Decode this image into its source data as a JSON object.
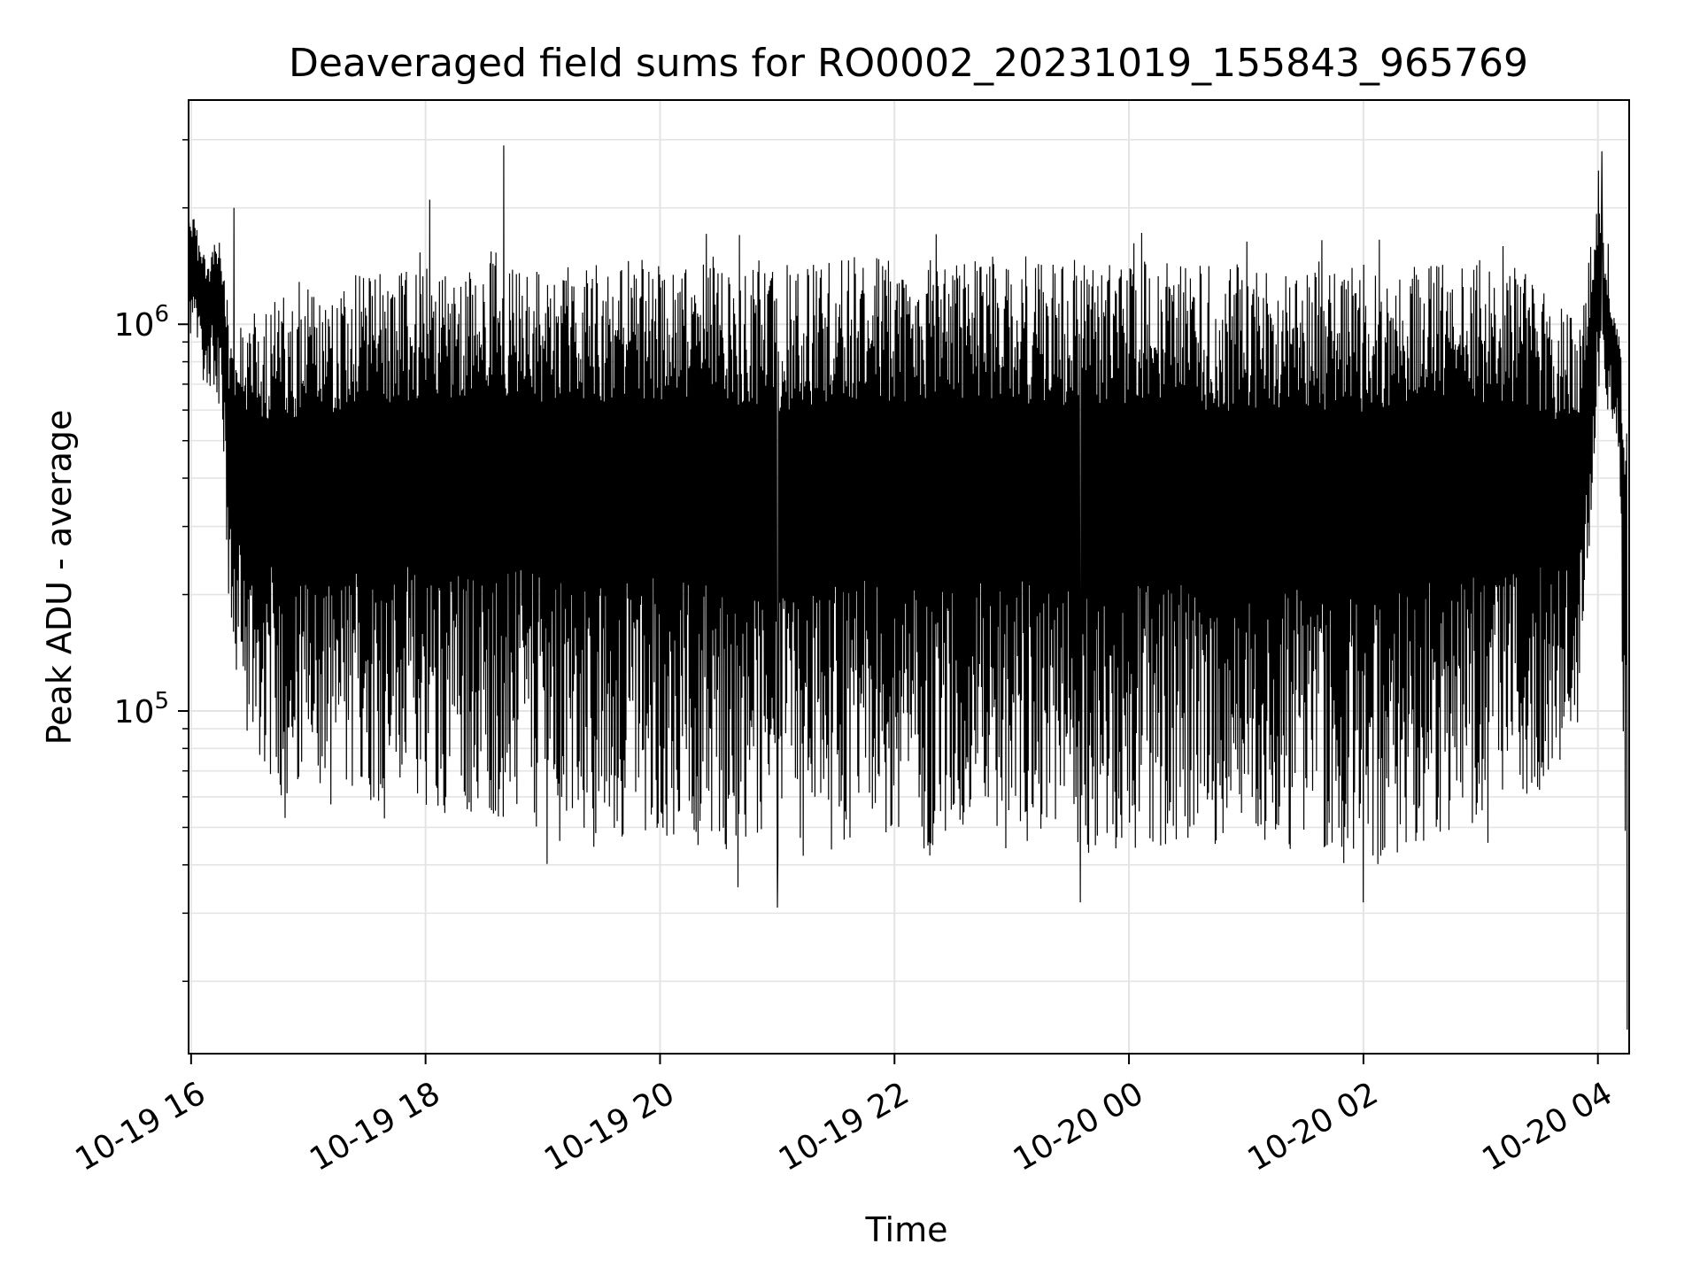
{
  "chart_data": {
    "type": "line",
    "title": "Deaveraged field sums for RO0002_20231019_155843_965769",
    "xlabel": "Time",
    "ylabel": "Peak ADU - average",
    "x_range": [
      "2023-10-19T15:58:43",
      "2023-10-20T04:16:00"
    ],
    "x_ticks": [
      {
        "value": "2023-10-19T16:00:00",
        "label": "10-19 16"
      },
      {
        "value": "2023-10-19T18:00:00",
        "label": "10-19 18"
      },
      {
        "value": "2023-10-19T20:00:00",
        "label": "10-19 20"
      },
      {
        "value": "2023-10-19T22:00:00",
        "label": "10-19 22"
      },
      {
        "value": "2023-10-20T00:00:00",
        "label": "10-20 00"
      },
      {
        "value": "2023-10-20T02:00:00",
        "label": "10-20 02"
      },
      {
        "value": "2023-10-20T04:00:00",
        "label": "10-20 04"
      }
    ],
    "y_scale": "log",
    "ylim": [
      13000,
      3800000
    ],
    "y_ticks": [
      {
        "value": 100000,
        "base": "10",
        "exp": "5"
      },
      {
        "value": 1000000,
        "base": "10",
        "exp": "6"
      }
    ],
    "grid": true,
    "series_color": "#000000",
    "series_envelope": [
      {
        "t": "2023-10-19T15:59:00",
        "low": 900000,
        "high": 2100000
      },
      {
        "t": "2023-10-19T16:08:00",
        "low": 700000,
        "high": 1500000
      },
      {
        "t": "2023-10-19T16:15:00",
        "low": 650000,
        "high": 1750000
      },
      {
        "t": "2023-10-19T16:20:00",
        "low": 130000,
        "high": 900000
      },
      {
        "t": "2023-10-19T16:30:00",
        "low": 80000,
        "high": 1100000
      },
      {
        "t": "2023-10-19T16:50:00",
        "low": 55000,
        "high": 1200000
      },
      {
        "t": "2023-10-19T17:30:00",
        "low": 58000,
        "high": 1350000
      },
      {
        "t": "2023-10-19T18:00:00",
        "low": 55000,
        "high": 1400000
      },
      {
        "t": "2023-10-19T18:40:00",
        "low": 52000,
        "high": 1500000
      },
      {
        "t": "2023-10-19T19:20:00",
        "low": 45000,
        "high": 1450000
      },
      {
        "t": "2023-10-19T20:00:00",
        "low": 48000,
        "high": 1500000
      },
      {
        "t": "2023-10-19T20:40:00",
        "low": 42000,
        "high": 1500000
      },
      {
        "t": "2023-10-19T21:00:00",
        "low": 38000,
        "high": 1450000
      },
      {
        "t": "2023-10-19T21:40:00",
        "low": 45000,
        "high": 1500000
      },
      {
        "t": "2023-10-19T22:20:00",
        "low": 42000,
        "high": 1500000
      },
      {
        "t": "2023-10-19T23:00:00",
        "low": 45000,
        "high": 1500000
      },
      {
        "t": "2023-10-19T23:40:00",
        "low": 42000,
        "high": 1500000
      },
      {
        "t": "2023-10-20T00:20:00",
        "low": 45000,
        "high": 1450000
      },
      {
        "t": "2023-10-20T01:00:00",
        "low": 45000,
        "high": 1400000
      },
      {
        "t": "2023-10-20T01:40:00",
        "low": 42000,
        "high": 1400000
      },
      {
        "t": "2023-10-20T02:00:00",
        "low": 38000,
        "high": 1450000
      },
      {
        "t": "2023-10-20T02:40:00",
        "low": 48000,
        "high": 1450000
      },
      {
        "t": "2023-10-20T03:20:00",
        "low": 55000,
        "high": 1400000
      },
      {
        "t": "2023-10-20T03:50:00",
        "low": 80000,
        "high": 1000000
      },
      {
        "t": "2023-10-20T04:00:00",
        "low": 600000,
        "high": 2200000
      },
      {
        "t": "2023-10-20T04:10:00",
        "low": 500000,
        "high": 1000000
      },
      {
        "t": "2023-10-20T04:15:00",
        "low": 20000,
        "high": 800000
      }
    ],
    "notable_points": [
      {
        "t": "2023-10-19T18:40:00",
        "value": 2900000
      },
      {
        "t": "2023-10-19T18:02:00",
        "value": 2100000
      },
      {
        "t": "2023-10-19T16:22:00",
        "value": 2000000
      },
      {
        "t": "2023-10-20T04:02:00",
        "value": 2800000
      },
      {
        "t": "2023-10-19T20:40:00",
        "value": 35000
      },
      {
        "t": "2023-10-19T21:00:00",
        "value": 31000
      },
      {
        "t": "2023-10-19T23:35:00",
        "value": 32000
      },
      {
        "t": "2023-10-20T02:00:00",
        "value": 32000
      },
      {
        "t": "2023-10-20T04:15:00",
        "value": 15000
      }
    ]
  }
}
